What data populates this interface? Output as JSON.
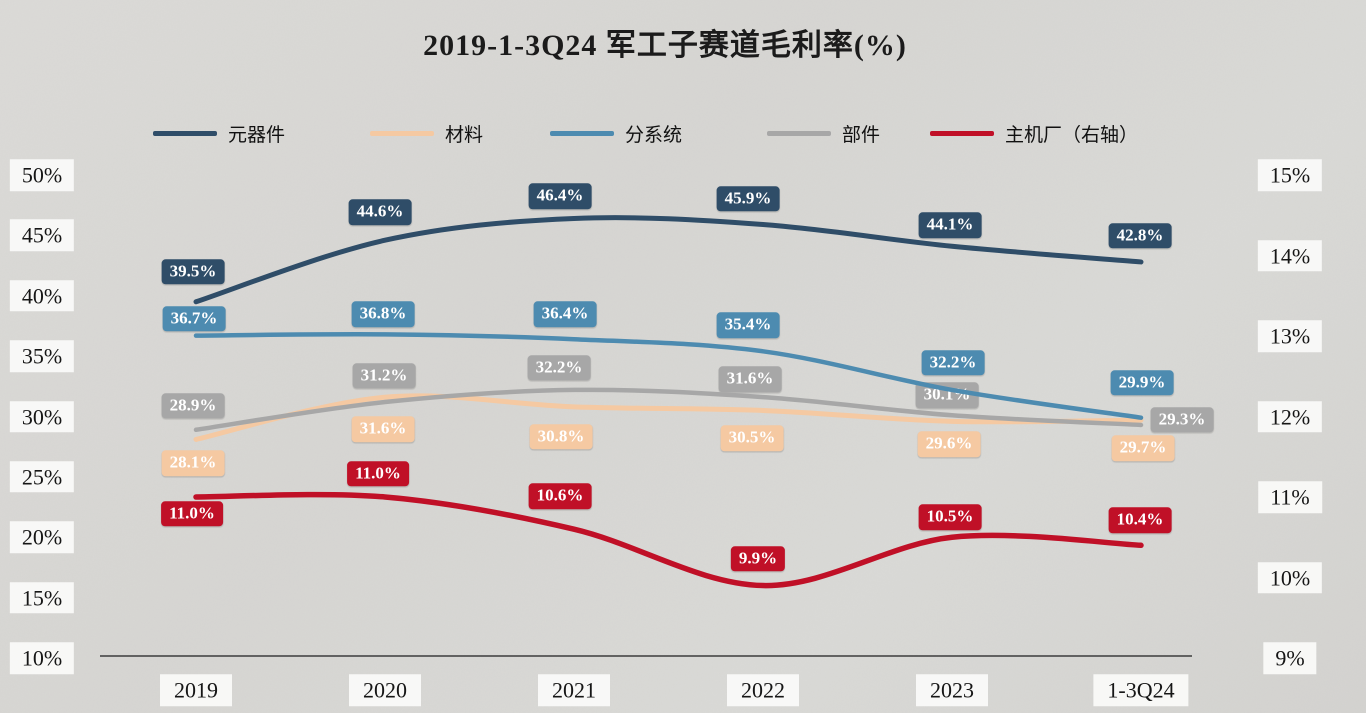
{
  "title": "2019-1-3Q24 军工子赛道毛利率(%)",
  "colors": {
    "background": "#d8d7d4",
    "components": "#2f4d68",
    "materials": "#f5c9a2",
    "subsystems": "#4d8bb0",
    "parts": "#a7a7a7",
    "oem": "#c01027",
    "axis_line": "#3c3c3c",
    "tick_text": "#161616"
  },
  "legend": [
    {
      "label": "元器件",
      "color": "#2f4d68"
    },
    {
      "label": "材料",
      "color": "#f5c9a2"
    },
    {
      "label": "分系统",
      "color": "#4d8bb0"
    },
    {
      "label": "部件",
      "color": "#a7a7a7"
    },
    {
      "label": "主机厂（右轴）",
      "color": "#c01027"
    }
  ],
  "chart_data": {
    "type": "line",
    "title": "2019-1-3Q24 军工子赛道毛利率(%)",
    "categories": [
      "2019",
      "2020",
      "2021",
      "2022",
      "2023",
      "1-3Q24"
    ],
    "series": [
      {
        "name": "元器件",
        "axis": "left",
        "color": "#2f4d68",
        "values": [
          39.5,
          44.6,
          46.4,
          45.9,
          44.1,
          42.8
        ],
        "labels": [
          "39.5%",
          "44.6%",
          "46.4%",
          "45.9%",
          "44.1%",
          "42.8%"
        ]
      },
      {
        "name": "材料",
        "axis": "left",
        "color": "#f5c9a2",
        "values": [
          28.1,
          31.6,
          30.8,
          30.5,
          29.6,
          29.7
        ],
        "labels": [
          "28.1%",
          "31.6%",
          "30.8%",
          "30.5%",
          "29.6%",
          "29.7%"
        ]
      },
      {
        "name": "分系统",
        "axis": "left",
        "color": "#4d8bb0",
        "values": [
          36.7,
          36.8,
          36.4,
          35.4,
          32.2,
          29.9
        ],
        "labels": [
          "36.7%",
          "36.8%",
          "36.4%",
          "35.4%",
          "32.2%",
          "29.9%"
        ]
      },
      {
        "name": "部件",
        "axis": "left",
        "color": "#a7a7a7",
        "values": [
          28.9,
          31.2,
          32.2,
          31.6,
          30.1,
          29.3
        ],
        "labels": [
          "28.9%",
          "31.2%",
          "32.2%",
          "31.6%",
          "30.1%",
          "29.3%"
        ]
      },
      {
        "name": "主机厂（右轴）",
        "axis": "right",
        "color": "#c01027",
        "values": [
          11.0,
          11.0,
          10.6,
          9.9,
          10.5,
          10.4
        ],
        "labels": [
          "11.0%",
          "11.0%",
          "10.6%",
          "9.9%",
          "10.5%",
          "10.4%"
        ]
      }
    ],
    "left_axis": {
      "ticks": [
        "50%",
        "45%",
        "40%",
        "35%",
        "30%",
        "25%",
        "20%",
        "15%",
        "10%"
      ],
      "min": 10,
      "max": 50
    },
    "right_axis": {
      "ticks": [
        "15%",
        "14%",
        "13%",
        "12%",
        "11%",
        "10%",
        "9%"
      ],
      "min": 9,
      "max": 15
    },
    "legend_position": "top",
    "grid": false,
    "data_labels": true,
    "line_style": "smooth"
  }
}
